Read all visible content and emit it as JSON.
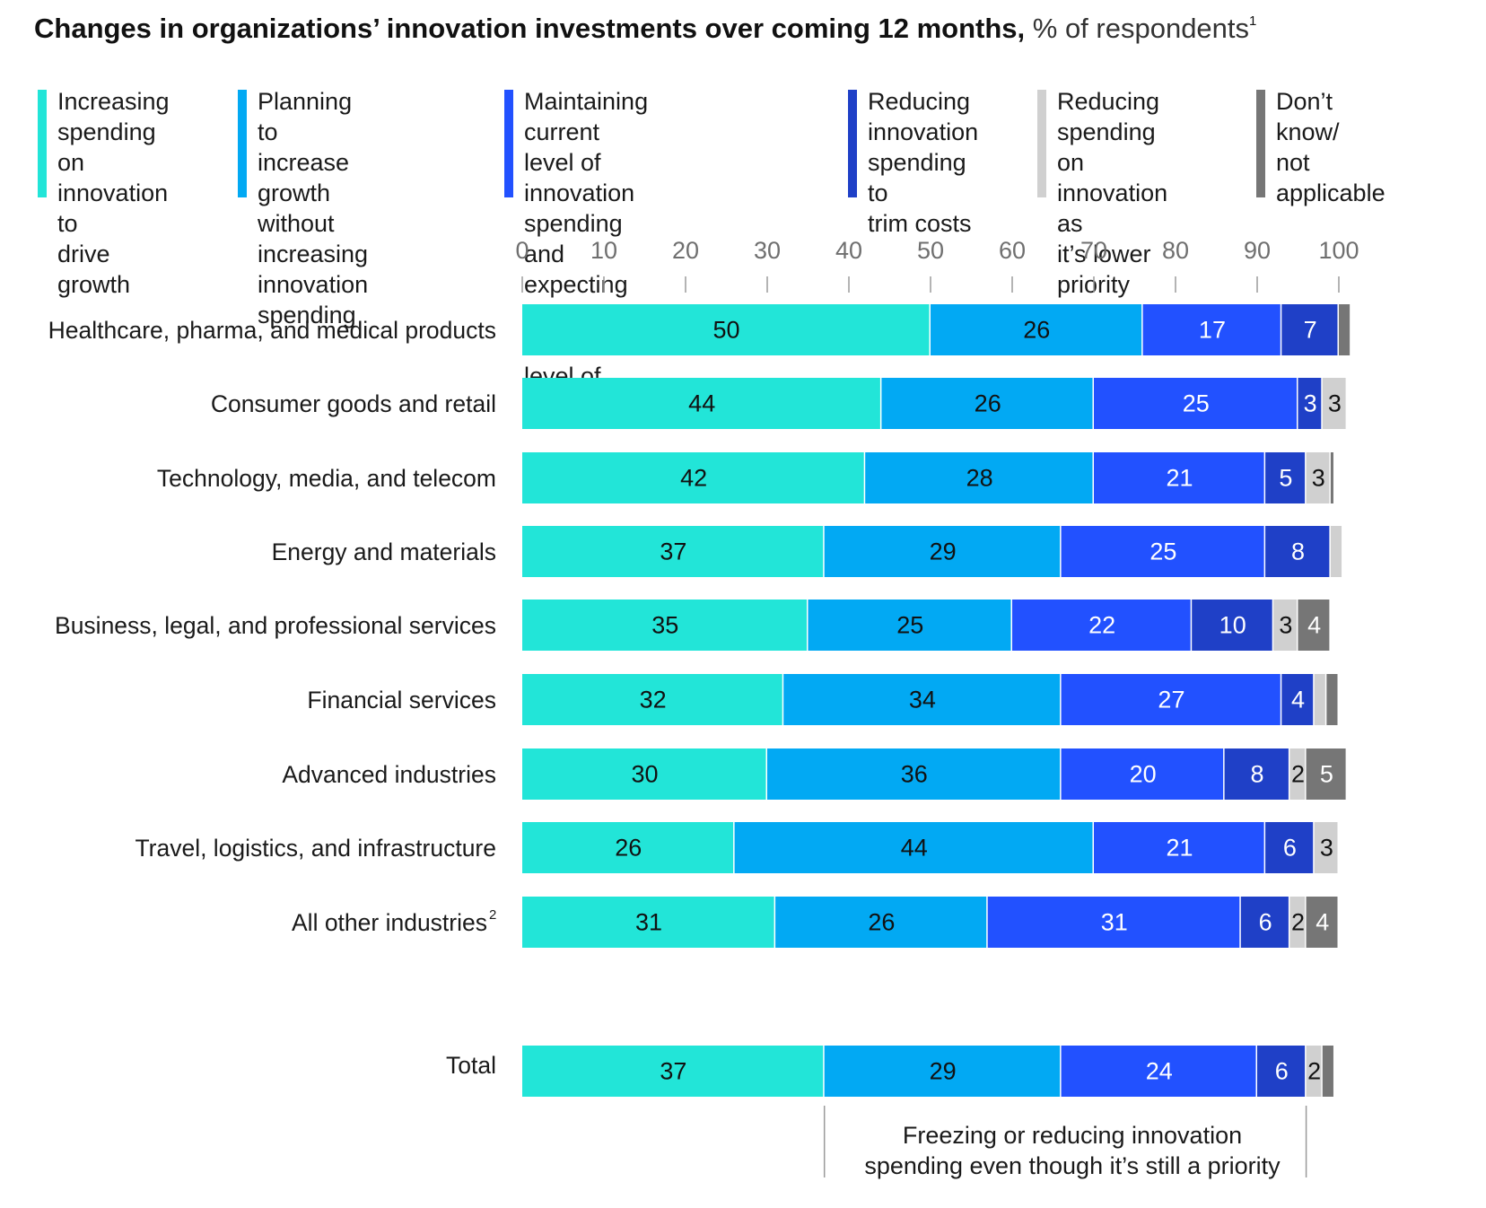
{
  "chart_data": {
    "type": "bar",
    "orientation": "horizontal",
    "stacked": true,
    "title": "Changes in organizations’ innovation investments over coming 12 months,",
    "unit_label": "% of respondents",
    "title_footnote": "1",
    "xlim": [
      0,
      100
    ],
    "xticks": [
      "0",
      "10",
      "20",
      "30",
      "40",
      "50",
      "60",
      "70",
      "80",
      "90",
      "100"
    ],
    "categories": [
      "Healthcare, pharma, and medical products",
      "Consumer goods and retail",
      "Technology, media, and telecom",
      "Energy and materials",
      "Business, legal, and professional services",
      "Financial services",
      "Advanced industries",
      "Travel, logistics, and infrastructure",
      "All other industries",
      "Total"
    ],
    "category_footnotes": [
      "",
      "",
      "",
      "",
      "",
      "",
      "",
      "",
      "2",
      ""
    ],
    "series": [
      {
        "name": "Increasing spending on innovation to drive growth",
        "color": "#22e5d8",
        "label_color": "#111111",
        "values": [
          50,
          44,
          42,
          37,
          35,
          32,
          30,
          26,
          31,
          37
        ],
        "labels": [
          "50",
          "44",
          "42",
          "37",
          "35",
          "32",
          "30",
          "26",
          "31",
          "37"
        ]
      },
      {
        "name": "Planning to increase growth without increasing innovation spending",
        "color": "#02a9f3",
        "label_color": "#111111",
        "values": [
          26,
          26,
          28,
          29,
          25,
          34,
          36,
          44,
          26,
          29
        ],
        "labels": [
          "26",
          "26",
          "28",
          "29",
          "25",
          "34",
          "36",
          "44",
          "26",
          "29"
        ]
      },
      {
        "name": "Maintaining current level of innovation spending and expecting to maintain current level of growth",
        "color": "#2251ff",
        "label_color": "#ffffff",
        "values": [
          17,
          25,
          21,
          25,
          22,
          27,
          20,
          21,
          31,
          24
        ],
        "labels": [
          "17",
          "25",
          "21",
          "25",
          "22",
          "27",
          "20",
          "21",
          "31",
          "24"
        ]
      },
      {
        "name": "Reducing innovation spending to trim costs",
        "color": "#1f40c7",
        "label_color": "#ffffff",
        "values": [
          7,
          3,
          5,
          8,
          10,
          4,
          8,
          6,
          6,
          6
        ],
        "labels": [
          "7",
          "3",
          "5",
          "8",
          "10",
          "4",
          "8",
          "6",
          "6",
          "6"
        ]
      },
      {
        "name": "Reducing spending on innovation as it’s lower priority",
        "color": "#d0d0d0",
        "label_color": "#111111",
        "values": [
          0,
          3,
          3,
          1.5,
          3,
          1.5,
          2,
          3,
          2,
          2
        ],
        "labels": [
          "",
          "3",
          "3",
          "",
          "3",
          "",
          "2",
          "3",
          "2",
          "2"
        ]
      },
      {
        "name": "Don’t know/ not applicable",
        "color": "#767676",
        "label_color": "#ffffff",
        "values": [
          1.5,
          0,
          0.5,
          0,
          4,
          1.5,
          5,
          0,
          4,
          1.5
        ],
        "labels": [
          "",
          "",
          "",
          "",
          "4",
          "",
          "5",
          "",
          "4",
          ""
        ]
      }
    ],
    "legend": {
      "placement": "top",
      "items": [
        "Increasing\nspending on\ninnovation to\ndrive growth",
        "Planning to increase\ngrowth without\nincreasing\ninnovation spending",
        "Maintaining current level of\ninnovation spending and\nexpecting to maintain\ncurrent level of growth",
        "Reducing\ninnovation\nspending to\ntrim costs",
        "Reducing\nspending on\ninnovation as\nit’s lower priority",
        "Don’t\nknow/\nnot\napplicable"
      ]
    },
    "annotation": {
      "text": "Freezing or reducing innovation\nspending even though it’s still a priority",
      "span": [
        37,
        96
      ]
    }
  }
}
